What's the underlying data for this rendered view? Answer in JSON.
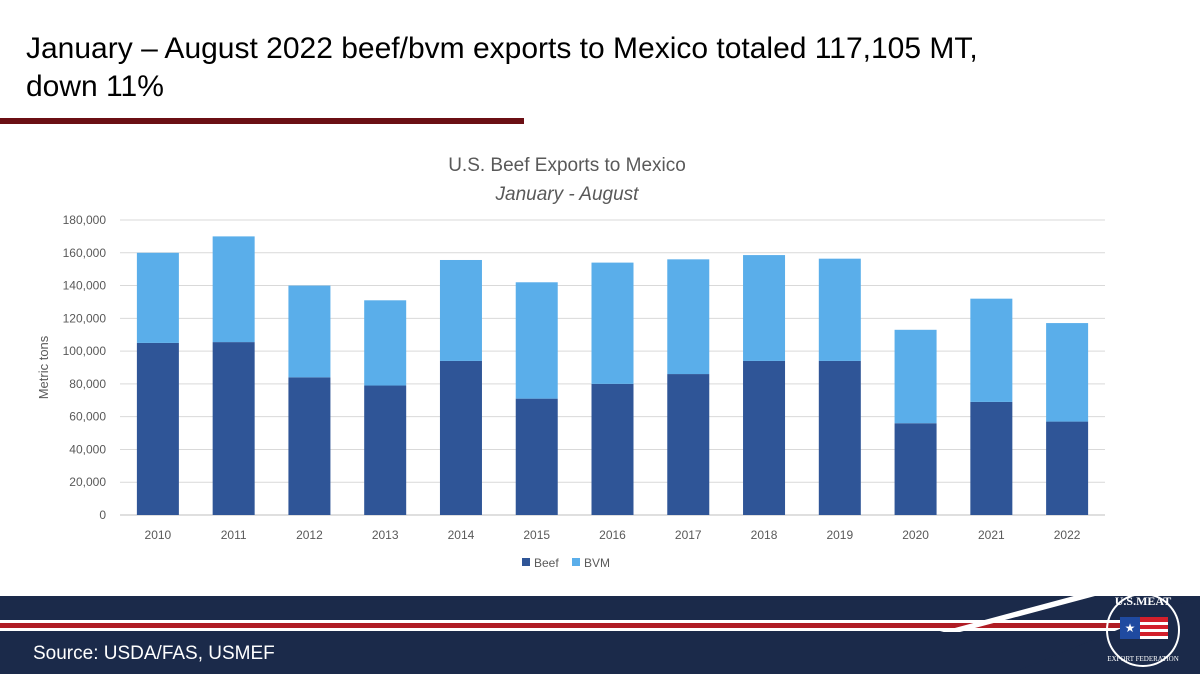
{
  "slide": {
    "title": "January – August 2022 beef/bvm exports to Mexico totaled 117,105 MT, down 11%",
    "source": "Source: USDA/FAS, USMEF",
    "logo_text": "U.S. MEAT EXPORT FEDERATION"
  },
  "chart_data": {
    "type": "bar",
    "stacked": true,
    "title": "U.S. Beef Exports to Mexico",
    "subtitle": "January - August",
    "xlabel": "",
    "ylabel": "Metric tons",
    "ylim": [
      0,
      180000
    ],
    "yticks": [
      0,
      20000,
      40000,
      60000,
      80000,
      100000,
      120000,
      140000,
      160000,
      180000
    ],
    "ytick_labels": [
      "0",
      "20,000",
      "40,000",
      "60,000",
      "80,000",
      "100,000",
      "120,000",
      "140,000",
      "160,000",
      "180,000"
    ],
    "grid": true,
    "legend": "bottom",
    "categories": [
      "2010",
      "2011",
      "2012",
      "2013",
      "2014",
      "2015",
      "2016",
      "2017",
      "2018",
      "2019",
      "2020",
      "2021",
      "2022"
    ],
    "series": [
      {
        "name": "Beef",
        "color": "#2f5597",
        "values": [
          105000,
          105500,
          84000,
          79000,
          94000,
          71000,
          80000,
          86000,
          94000,
          94000,
          56000,
          69000,
          57000
        ]
      },
      {
        "name": "BVM",
        "color": "#5aaeea",
        "values": [
          55000,
          64500,
          56000,
          52000,
          61600,
          71000,
          74000,
          70000,
          64600,
          62400,
          57000,
          63000,
          60105
        ]
      }
    ]
  }
}
